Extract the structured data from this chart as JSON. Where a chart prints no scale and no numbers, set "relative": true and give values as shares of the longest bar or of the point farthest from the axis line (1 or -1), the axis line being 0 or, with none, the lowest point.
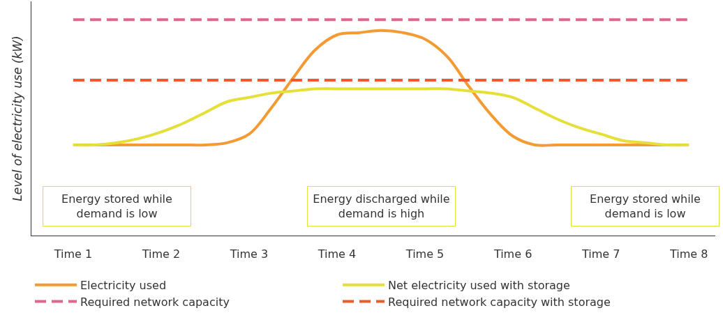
{
  "chart_data": {
    "type": "line",
    "relative": true,
    "ylabel": "Level of electricity use (kW)",
    "legend": "bottom",
    "categories": [
      "Time 1",
      null,
      null,
      null,
      "Time 2",
      null,
      null,
      null,
      "Time 3",
      null,
      null,
      null,
      "Time 4",
      null,
      null,
      null,
      "Time 5",
      null,
      null,
      null,
      "Time 6",
      null,
      null,
      null,
      "Time 7",
      null,
      null,
      null,
      "Time 8"
    ],
    "series": [
      {
        "name": "Electricity used",
        "color": "#f39a32",
        "line_style": "solid",
        "values": [
          0.42,
          0.42,
          0.42,
          0.42,
          0.42,
          0.42,
          0.42,
          0.43,
          0.47,
          0.59,
          0.73,
          0.86,
          0.93,
          0.94,
          0.95,
          0.94,
          0.91,
          0.83,
          0.69,
          0.56,
          0.46,
          0.42,
          0.42,
          0.42,
          0.42,
          0.42,
          0.42,
          0.42,
          0.42
        ]
      },
      {
        "name": "Net electricity used with storage",
        "color": "#e5df3a",
        "line_style": "solid",
        "values": [
          0.42,
          0.42,
          0.43,
          0.45,
          0.48,
          0.52,
          0.57,
          0.62,
          0.64,
          0.66,
          0.67,
          0.68,
          0.68,
          0.68,
          0.68,
          0.68,
          0.68,
          0.68,
          0.67,
          0.66,
          0.64,
          0.59,
          0.54,
          0.5,
          0.47,
          0.44,
          0.43,
          0.42,
          0.42
        ]
      },
      {
        "name": "Required network capacity",
        "color": "#e0668e",
        "line_style": "dashed",
        "values": [
          1,
          1,
          1,
          1,
          1,
          1,
          1,
          1,
          1,
          1,
          1,
          1,
          1,
          1,
          1,
          1,
          1,
          1,
          1,
          1,
          1,
          1,
          1,
          1,
          1,
          1,
          1,
          1,
          1
        ]
      },
      {
        "name": "Required network capacity with storage",
        "color": "#ee5a2a",
        "line_style": "dashed",
        "values": [
          0.72,
          0.72,
          0.72,
          0.72,
          0.72,
          0.72,
          0.72,
          0.72,
          0.72,
          0.72,
          0.72,
          0.72,
          0.72,
          0.72,
          0.72,
          0.72,
          0.72,
          0.72,
          0.72,
          0.72,
          0.72,
          0.72,
          0.72,
          0.72,
          0.72,
          0.72,
          0.72,
          0.72,
          0.72
        ]
      }
    ],
    "annotations": [
      "Energy stored while\ndemand is low",
      "Energy discharged while\ndemand is high",
      "Energy stored while\ndemand is low"
    ]
  }
}
